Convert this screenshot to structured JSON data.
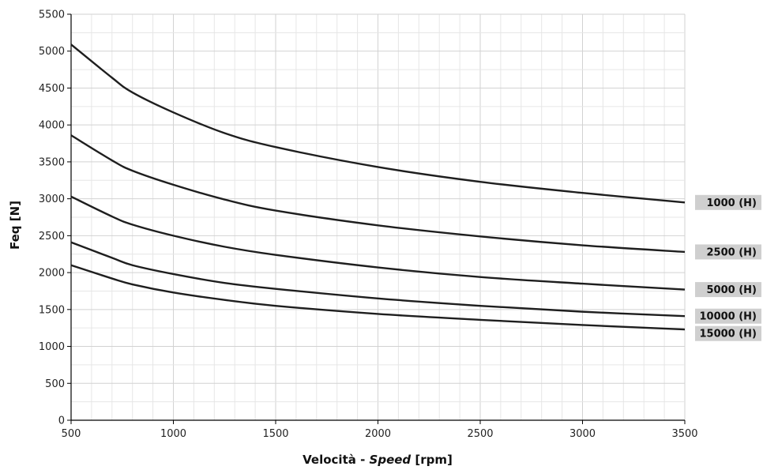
{
  "chart_data": {
    "type": "line",
    "title": "",
    "xlabel_prefix": "Velocità - ",
    "xlabel_italic": "Speed",
    "xlabel_suffix": " [rpm]",
    "ylabel": "Feq [N]",
    "xlim": [
      500,
      3500
    ],
    "ylim": [
      0,
      5500
    ],
    "xticks": [
      500,
      1000,
      1500,
      2000,
      2500,
      3000,
      3500
    ],
    "yticks": [
      0,
      500,
      1000,
      1500,
      2000,
      2500,
      3000,
      3500,
      4000,
      4500,
      5000,
      5500
    ],
    "x_minor_step": 100,
    "y_minor_step": 250,
    "grid": true,
    "legend": "labels at right end of each line",
    "colors": {
      "line": "#1e1e1e",
      "label_bg": "#cfcfcf"
    },
    "x": [
      500,
      700,
      800,
      1000,
      1250,
      1500,
      2000,
      2500,
      3000,
      3500
    ],
    "series": [
      {
        "name": "1000 (H)",
        "values": [
          5090,
          4640,
          4440,
          4170,
          3890,
          3700,
          3430,
          3230,
          3080,
          2950
        ]
      },
      {
        "name": "2500 (H)",
        "values": [
          3860,
          3520,
          3380,
          3190,
          2990,
          2840,
          2640,
          2490,
          2370,
          2280
        ]
      },
      {
        "name": "5000 (H)",
        "values": [
          3030,
          2760,
          2650,
          2500,
          2350,
          2240,
          2070,
          1940,
          1850,
          1770
        ]
      },
      {
        "name": "10000 (H)",
        "values": [
          2410,
          2200,
          2100,
          1980,
          1860,
          1780,
          1650,
          1550,
          1470,
          1410
        ]
      },
      {
        "name": "15000 (H)",
        "values": [
          2100,
          1920,
          1840,
          1730,
          1630,
          1550,
          1440,
          1360,
          1290,
          1230
        ]
      }
    ]
  }
}
